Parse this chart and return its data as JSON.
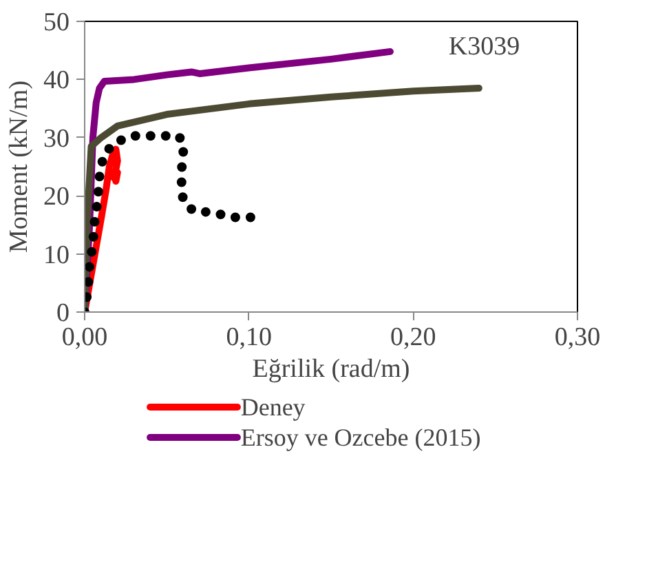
{
  "chart_data": {
    "type": "line",
    "xlabel": "Eğrilik (rad/m)",
    "ylabel": "Moment (kN/m)",
    "xlim": [
      0,
      0.3
    ],
    "ylim": [
      0,
      50
    ],
    "xticks": [
      {
        "value": 0,
        "label": "0,00"
      },
      {
        "value": 0.1,
        "label": "0,10"
      },
      {
        "value": 0.2,
        "label": "0,20"
      },
      {
        "value": 0.3,
        "label": "0,30"
      }
    ],
    "yticks": [
      0,
      10,
      20,
      30,
      40,
      50
    ],
    "grid": false,
    "legend": "bottom",
    "annotations": [
      "K3039"
    ],
    "series": [
      {
        "name": "Deney",
        "color": "#ff0000",
        "line_style": "solid",
        "x": [
          0,
          0.005,
          0.01,
          0.013,
          0.015,
          0.017,
          0.019,
          0.02,
          0.018,
          0.02,
          0.019
        ],
        "values": [
          0,
          8,
          16,
          21,
          25,
          27,
          28,
          26,
          23,
          24,
          22.5
        ]
      },
      {
        "name": "Ersoy ve Ozcebe (2015)",
        "color": "#800080",
        "line_style": "solid",
        "x": [
          0,
          0.003,
          0.005,
          0.007,
          0.009,
          0.012,
          0.03,
          0.05,
          0.065,
          0.07,
          0.1,
          0.15,
          0.186
        ],
        "values": [
          0,
          15,
          30,
          36,
          38.5,
          39.7,
          40,
          40.8,
          41.3,
          41,
          42,
          43.5,
          44.8
        ]
      },
      {
        "color": "#4d4a33",
        "line_style": "solid",
        "x": [
          0,
          0.002,
          0.004,
          0.01,
          0.02,
          0.05,
          0.1,
          0.15,
          0.2,
          0.24
        ],
        "values": [
          0,
          18,
          28.5,
          30,
          32,
          34,
          35.8,
          37,
          38,
          38.5
        ]
      },
      {
        "color": "#000000",
        "line_style": "dotted",
        "x": [
          0,
          0.002,
          0.003,
          0.005,
          0.006,
          0.008,
          0.009,
          0.0115,
          0.018,
          0.029,
          0.043,
          0.057,
          0.06,
          0.06,
          0.0595,
          0.059,
          0.059,
          0.059,
          0.06,
          0.066,
          0.079,
          0.089,
          0.103
        ],
        "values": [
          0,
          4,
          8,
          11.6,
          15.4,
          19.4,
          23.2,
          27,
          29.1,
          30.3,
          30.3,
          30.3,
          29.2,
          27.1,
          26.3,
          24.2,
          22,
          21.3,
          19.2,
          17.4,
          17.1,
          16.3,
          16.3
        ]
      }
    ]
  }
}
